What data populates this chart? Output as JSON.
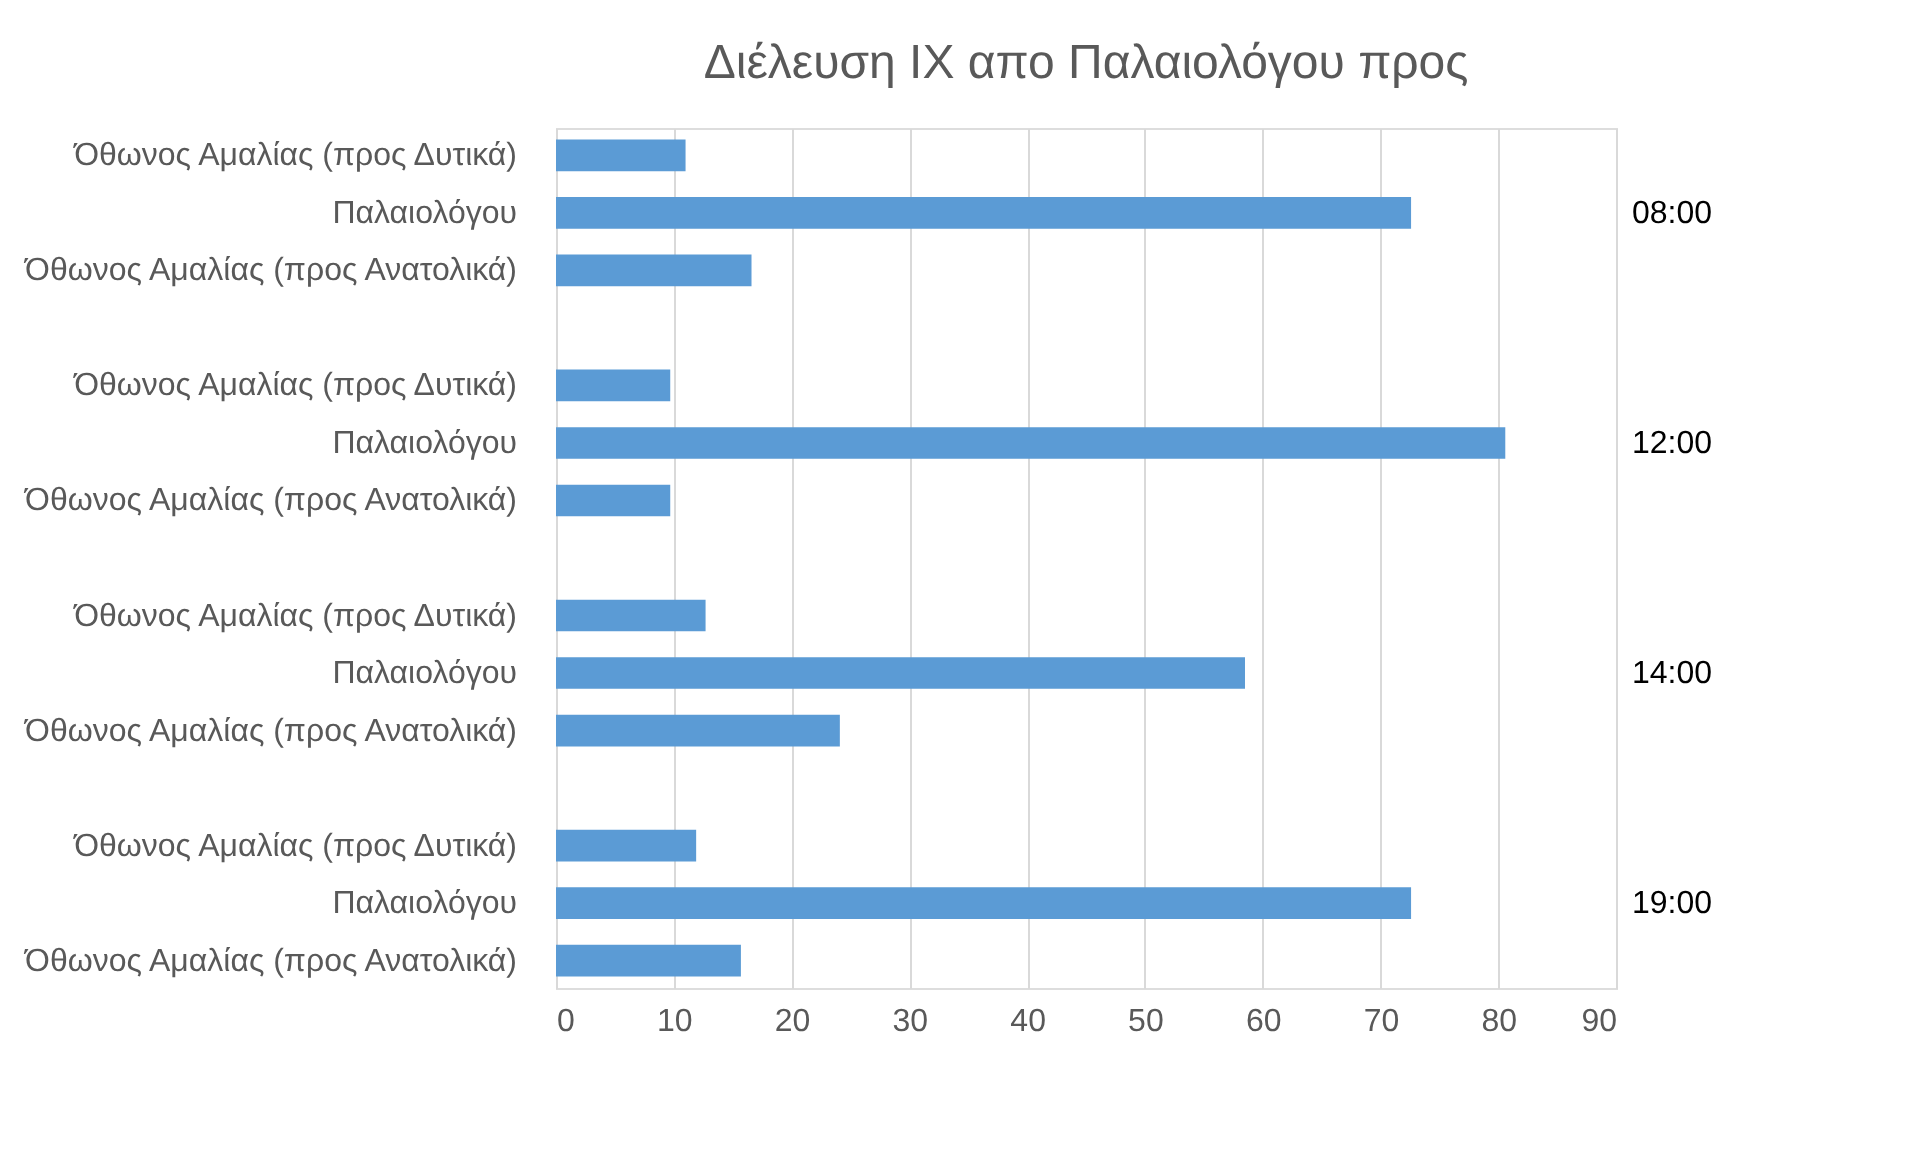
{
  "chart_data": {
    "type": "bar",
    "orientation": "horizontal",
    "title": "Διέλευση ΙΧ απο Παλαιολόγου  προς",
    "categories": [
      "Όθωνος Αμαλίας (προς Δυτικά)",
      "Παλαιολόγου",
      "Όθωνος Αμαλίας (προς Ανατολικά)",
      null,
      "Όθωνος Αμαλίας (προς Δυτικά)",
      "Παλαιολόγου",
      "Όθωνος Αμαλίας (προς Ανατολικά)",
      null,
      "Όθωνος Αμαλίας (προς Δυτικά)",
      "Παλαιολόγου",
      "Όθωνος Αμαλίας (προς Ανατολικά)",
      null,
      "Όθωνος Αμαλίας (προς Δυτικά)",
      "Παλαιολόγου",
      "Όθωνος Αμαλίας (προς Ανατολικά)"
    ],
    "values": [
      11,
      72.6,
      16.6,
      null,
      9.7,
      80.6,
      9.7,
      null,
      12.7,
      58.5,
      24.1,
      null,
      11.9,
      72.6,
      15.7
    ],
    "color": "#5b9bd5",
    "xlim": [
      0,
      90
    ],
    "xticks": [
      0,
      10,
      20,
      30,
      40,
      50,
      60,
      70,
      80,
      90
    ],
    "grid": "x",
    "annotations": [
      "08:00",
      "12:00",
      "14:00",
      "19:00"
    ]
  }
}
